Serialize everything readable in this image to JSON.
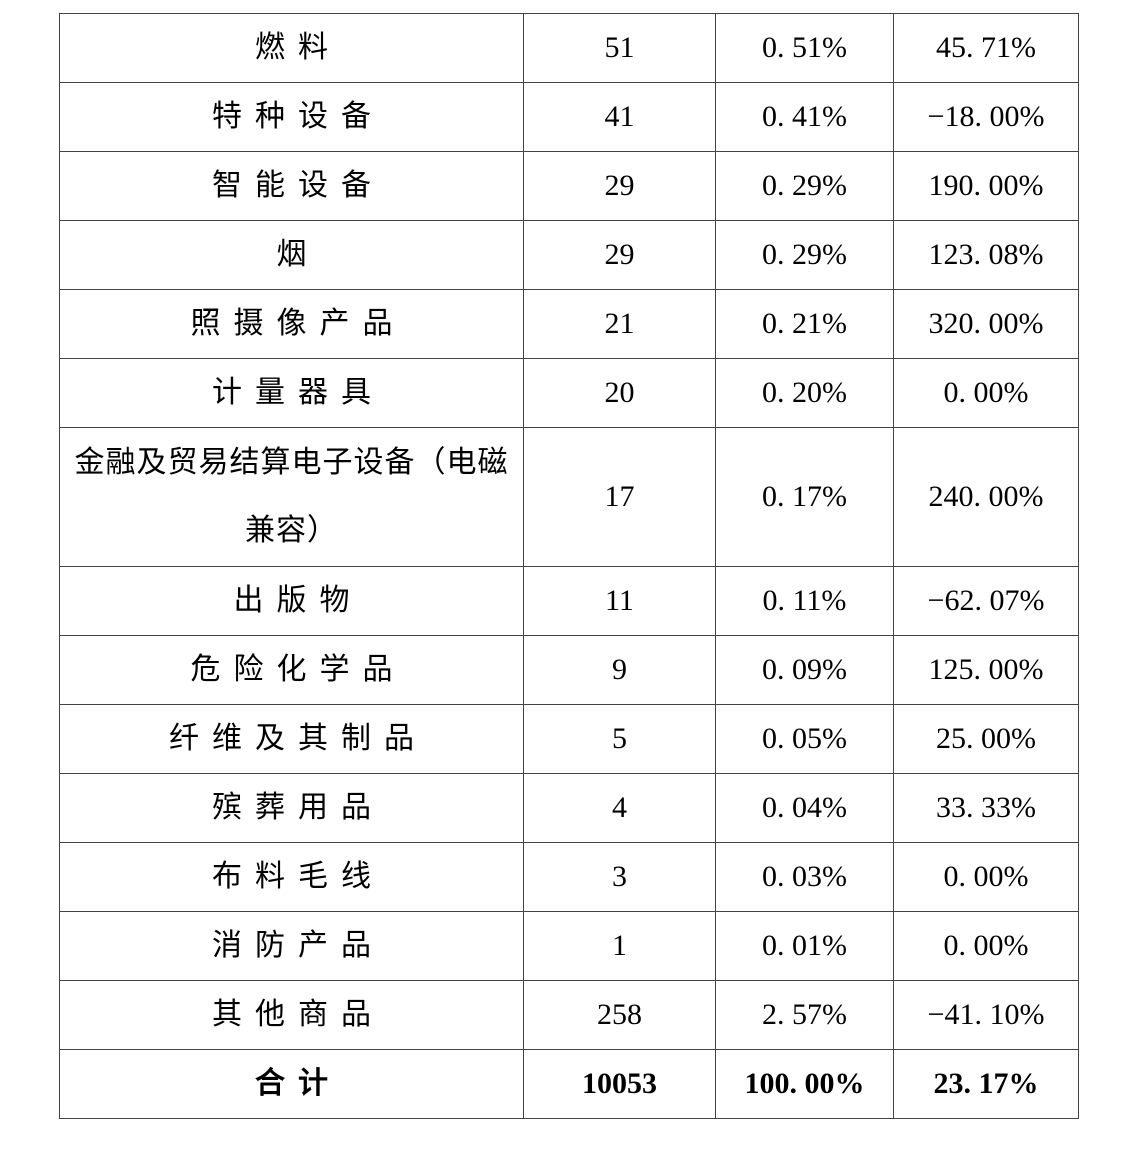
{
  "table": {
    "rows": [
      {
        "category": "燃料",
        "count": "51",
        "share": "0. 51%",
        "yoy": "45. 71%"
      },
      {
        "category": "特种设备",
        "count": "41",
        "share": "0. 41%",
        "yoy": "−18. 00%"
      },
      {
        "category": "智能设备",
        "count": "29",
        "share": "0. 29%",
        "yoy": "190. 00%"
      },
      {
        "category": "烟",
        "count": "29",
        "share": "0. 29%",
        "yoy": "123. 08%"
      },
      {
        "category": "照摄像产品",
        "count": "21",
        "share": "0. 21%",
        "yoy": "320. 00%"
      },
      {
        "category": "计量器具",
        "count": "20",
        "share": "0. 20%",
        "yoy": "0. 00%"
      },
      {
        "category": "金融及贸易结算电子设备（电磁\n兼容）",
        "count": "17",
        "share": "0. 17%",
        "yoy": "240. 00%"
      },
      {
        "category": "出版物",
        "count": "11",
        "share": "0. 11%",
        "yoy": "−62. 07%"
      },
      {
        "category": "危险化学品",
        "count": "9",
        "share": "0. 09%",
        "yoy": "125. 00%"
      },
      {
        "category": "纤维及其制品",
        "count": "5",
        "share": "0. 05%",
        "yoy": "25. 00%"
      },
      {
        "category": "殡葬用品",
        "count": "4",
        "share": "0. 04%",
        "yoy": "33. 33%"
      },
      {
        "category": "布料毛线",
        "count": "3",
        "share": "0. 03%",
        "yoy": "0. 00%"
      },
      {
        "category": "消防产品",
        "count": "1",
        "share": "0. 01%",
        "yoy": "0. 00%"
      },
      {
        "category": "其他商品",
        "count": "258",
        "share": "2. 57%",
        "yoy": "−41. 10%"
      }
    ],
    "total": {
      "category": "合计",
      "count": "10053",
      "share": "100. 00%",
      "yoy": "23. 17%"
    }
  }
}
